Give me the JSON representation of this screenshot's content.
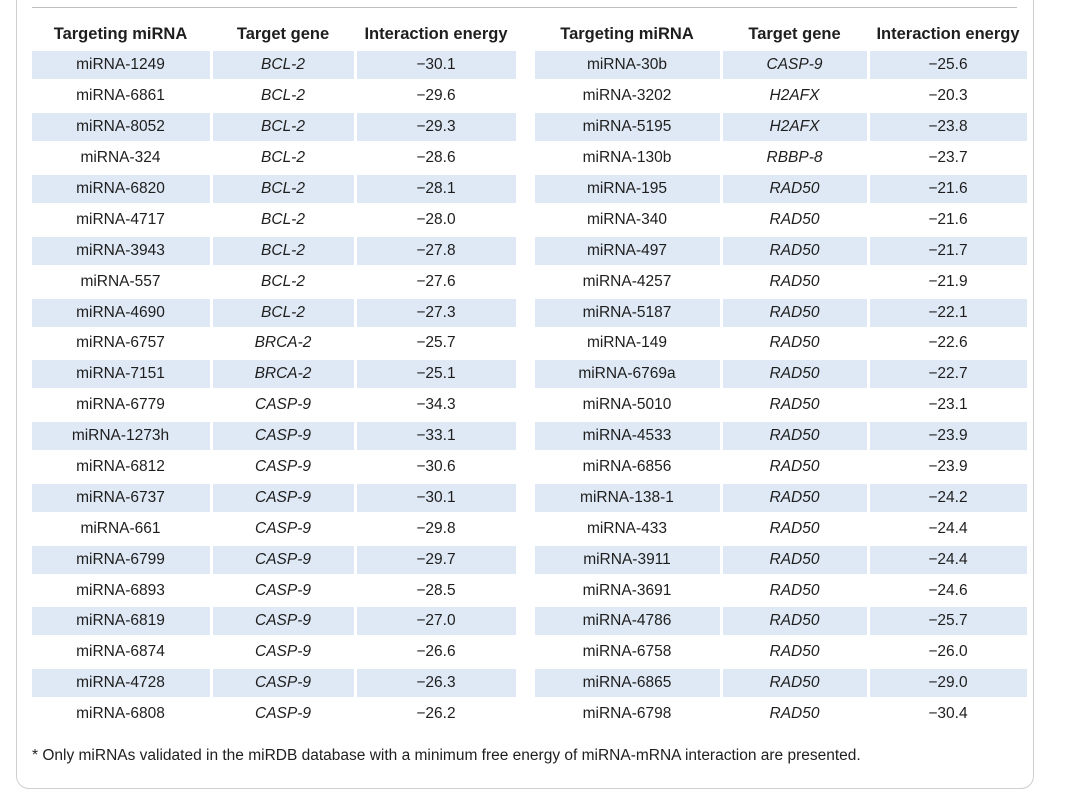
{
  "columns": [
    "Targeting miRNA",
    "Target gene",
    "Interaction energy",
    "Targeting miRNA",
    "Target gene",
    "Interaction energy"
  ],
  "rows": [
    [
      "miRNA-1249",
      "BCL-2",
      "−30.1",
      "miRNA-30b",
      "CASP-9",
      "−25.6"
    ],
    [
      "miRNA-6861",
      "BCL-2",
      "−29.6",
      "miRNA-3202",
      "H2AFX",
      "−20.3"
    ],
    [
      "miRNA-8052",
      "BCL-2",
      "−29.3",
      "miRNA-5195",
      "H2AFX",
      "−23.8"
    ],
    [
      "miRNA-324",
      "BCL-2",
      "−28.6",
      "miRNA-130b",
      "RBBP-8",
      "−23.7"
    ],
    [
      "miRNA-6820",
      "BCL-2",
      "−28.1",
      "miRNA-195",
      "RAD50",
      "−21.6"
    ],
    [
      "miRNA-4717",
      "BCL-2",
      "−28.0",
      "miRNA-340",
      "RAD50",
      "−21.6"
    ],
    [
      "miRNA-3943",
      "BCL-2",
      "−27.8",
      "miRNA-497",
      "RAD50",
      "−21.7"
    ],
    [
      "miRNA-557",
      "BCL-2",
      "−27.6",
      "miRNA-4257",
      "RAD50",
      "−21.9"
    ],
    [
      "miRNA-4690",
      "BCL-2",
      "−27.3",
      "miRNA-5187",
      "RAD50",
      "−22.1"
    ],
    [
      "miRNA-6757",
      "BRCA-2",
      "−25.7",
      "miRNA-149",
      "RAD50",
      "−22.6"
    ],
    [
      "miRNA-7151",
      "BRCA-2",
      "−25.1",
      "miRNA-6769a",
      "RAD50",
      "−22.7"
    ],
    [
      "miRNA-6779",
      "CASP-9",
      "−34.3",
      "miRNA-5010",
      "RAD50",
      "−23.1"
    ],
    [
      "miRNA-1273h",
      "CASP-9",
      "−33.1",
      "miRNA-4533",
      "RAD50",
      "−23.9"
    ],
    [
      "miRNA-6812",
      "CASP-9",
      "−30.6",
      "miRNA-6856",
      "RAD50",
      "−23.9"
    ],
    [
      "miRNA-6737",
      "CASP-9",
      "−30.1",
      "miRNA-138-1",
      "RAD50",
      "−24.2"
    ],
    [
      "miRNA-661",
      "CASP-9",
      "−29.8",
      "miRNA-433",
      "RAD50",
      "−24.4"
    ],
    [
      "miRNA-6799",
      "CASP-9",
      "−29.7",
      "miRNA-3911",
      "RAD50",
      "−24.4"
    ],
    [
      "miRNA-6893",
      "CASP-9",
      "−28.5",
      "miRNA-3691",
      "RAD50",
      "−24.6"
    ],
    [
      "miRNA-6819",
      "CASP-9",
      "−27.0",
      "miRNA-4786",
      "RAD50",
      "−25.7"
    ],
    [
      "miRNA-6874",
      "CASP-9",
      "−26.6",
      "miRNA-6758",
      "RAD50",
      "−26.0"
    ],
    [
      "miRNA-4728",
      "CASP-9",
      "−26.3",
      "miRNA-6865",
      "RAD50",
      "−29.0"
    ],
    [
      "miRNA-6808",
      "CASP-9",
      "−26.2",
      "miRNA-6798",
      "RAD50",
      "−30.4"
    ]
  ],
  "footnote": "* Only miRNAs validated in the miRDB database with a minimum free energy of miRNA-mRNA interaction are presented.",
  "colors": {
    "row_shade": "#dfe9f5",
    "frame_border": "#cfcfcf"
  }
}
